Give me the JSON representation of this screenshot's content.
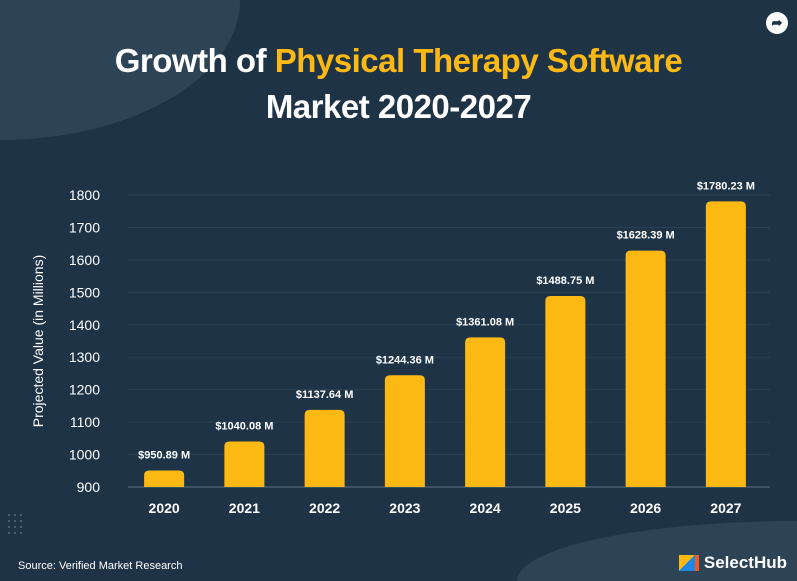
{
  "title": {
    "part1": "Growth of ",
    "highlight": "Physical Therapy Software",
    "part2": "Market 2020-2027"
  },
  "share_icon": "share-arrow-icon",
  "source": "Source: Verified Market Research",
  "logo": {
    "text": "SelectHub"
  },
  "colors": {
    "background": "#1f3347",
    "bar": "#fdb913",
    "highlight": "#fdb913"
  },
  "chart_data": {
    "type": "bar",
    "categories": [
      "2020",
      "2021",
      "2022",
      "2023",
      "2024",
      "2025",
      "2026",
      "2027"
    ],
    "values": [
      950.89,
      1040.08,
      1137.64,
      1244.36,
      1361.08,
      1488.75,
      1628.39,
      1780.23
    ],
    "data_labels": [
      "$950.89 M",
      "$1040.08 M",
      "$1137.64 M",
      "$1244.36 M",
      "$1361.08 M",
      "$1488.75 M",
      "$1628.39 M",
      "$1780.23 M"
    ],
    "ylabel": "Projected Value (in Millions)",
    "xlabel": "",
    "ylim": [
      900,
      1800
    ],
    "yticks": [
      "900",
      "1000",
      "1100",
      "1200",
      "1300",
      "1400",
      "1500",
      "1600",
      "1700",
      "1800"
    ],
    "grid": true
  }
}
